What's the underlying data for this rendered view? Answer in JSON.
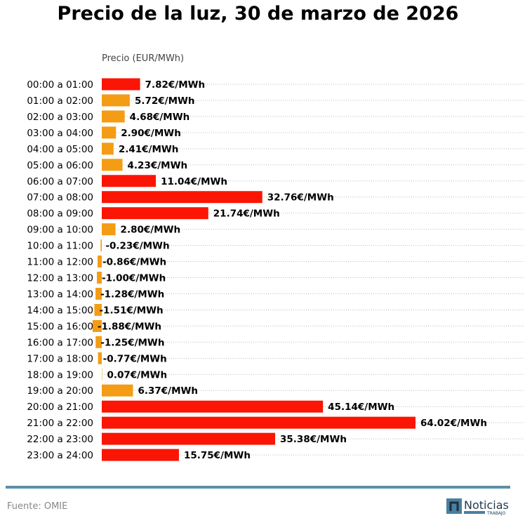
{
  "chart_data": {
    "type": "bar",
    "orientation": "horizontal",
    "title": "Precio de la luz, 30 de marzo de 2026",
    "xlabel": "Precio (EUR/MWh)",
    "unit_suffix": "€/MWh",
    "grid": "dotted horizontal",
    "categories": [
      "00:00 a 01:00",
      "01:00 a 02:00",
      "02:00 a 03:00",
      "03:00 a 04:00",
      "04:00 a 05:00",
      "05:00 a 06:00",
      "06:00 a 07:00",
      "07:00 a 08:00",
      "08:00 a 09:00",
      "09:00 a 10:00",
      "10:00 a 11:00",
      "11:00 a 12:00",
      "12:00 a 13:00",
      "13:00 a 14:00",
      "14:00 a 15:00",
      "15:00 a 16:00",
      "16:00 a 17:00",
      "17:00 a 18:00",
      "18:00 a 19:00",
      "19:00 a 20:00",
      "20:00 a 21:00",
      "21:00 a 22:00",
      "22:00 a 23:00",
      "23:00 a 24:00"
    ],
    "values": [
      7.82,
      5.72,
      4.68,
      2.9,
      2.41,
      4.23,
      11.04,
      32.76,
      21.74,
      2.8,
      -0.23,
      -0.86,
      -1.0,
      -1.28,
      -1.51,
      -1.88,
      -1.25,
      -0.77,
      0.07,
      6.37,
      45.14,
      64.02,
      35.38,
      15.75
    ],
    "colors": {
      "high": "#fb1505",
      "low": "#f39c14"
    }
  },
  "footer": {
    "source": "Fuente: OMIE",
    "logo_text": "Noticias",
    "logo_subtext": "TRABAJO",
    "logo_color": "#4a7fa0"
  }
}
